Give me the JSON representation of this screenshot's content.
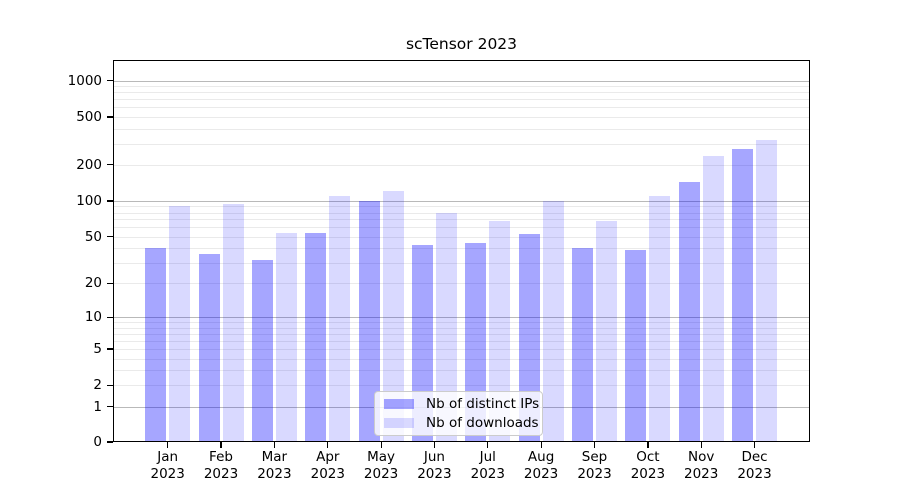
{
  "chart_data": {
    "type": "bar",
    "title": "scTensor 2023",
    "x_tick_months": [
      "Jan",
      "Feb",
      "Mar",
      "Apr",
      "May",
      "Jun",
      "Jul",
      "Aug",
      "Sep",
      "Oct",
      "Nov",
      "Dec"
    ],
    "x_tick_year": "2023",
    "y_ticks": [
      0,
      1,
      2,
      5,
      10,
      20,
      50,
      100,
      200,
      500,
      1000
    ],
    "y_scale": "log1p",
    "ylim": [
      0,
      1480
    ],
    "grid": true,
    "legend_position": "lower center",
    "series": [
      {
        "name": "Nb of distinct IPs",
        "color": "rgba(0,0,255,0.35)",
        "color_rendered": "#a6a6fa",
        "values": [
          40,
          36,
          32,
          54,
          100,
          43,
          44,
          53,
          40,
          39,
          145,
          270
        ]
      },
      {
        "name": "Nb of downloads",
        "color": "rgba(0,0,255,0.15)",
        "color_rendered": "#d9d9fd",
        "values": [
          90,
          95,
          54,
          110,
          120,
          80,
          68,
          100,
          68,
          110,
          235,
          320
        ]
      }
    ]
  },
  "colors": {
    "background": "#ffffff",
    "grid_minor": "#eaeaea",
    "grid_major": "#b9b9b9",
    "spine": "#000000",
    "text": "#000000",
    "legend_border": "#cccccc",
    "legend_background": "rgba(255,255,255,0.8)"
  }
}
